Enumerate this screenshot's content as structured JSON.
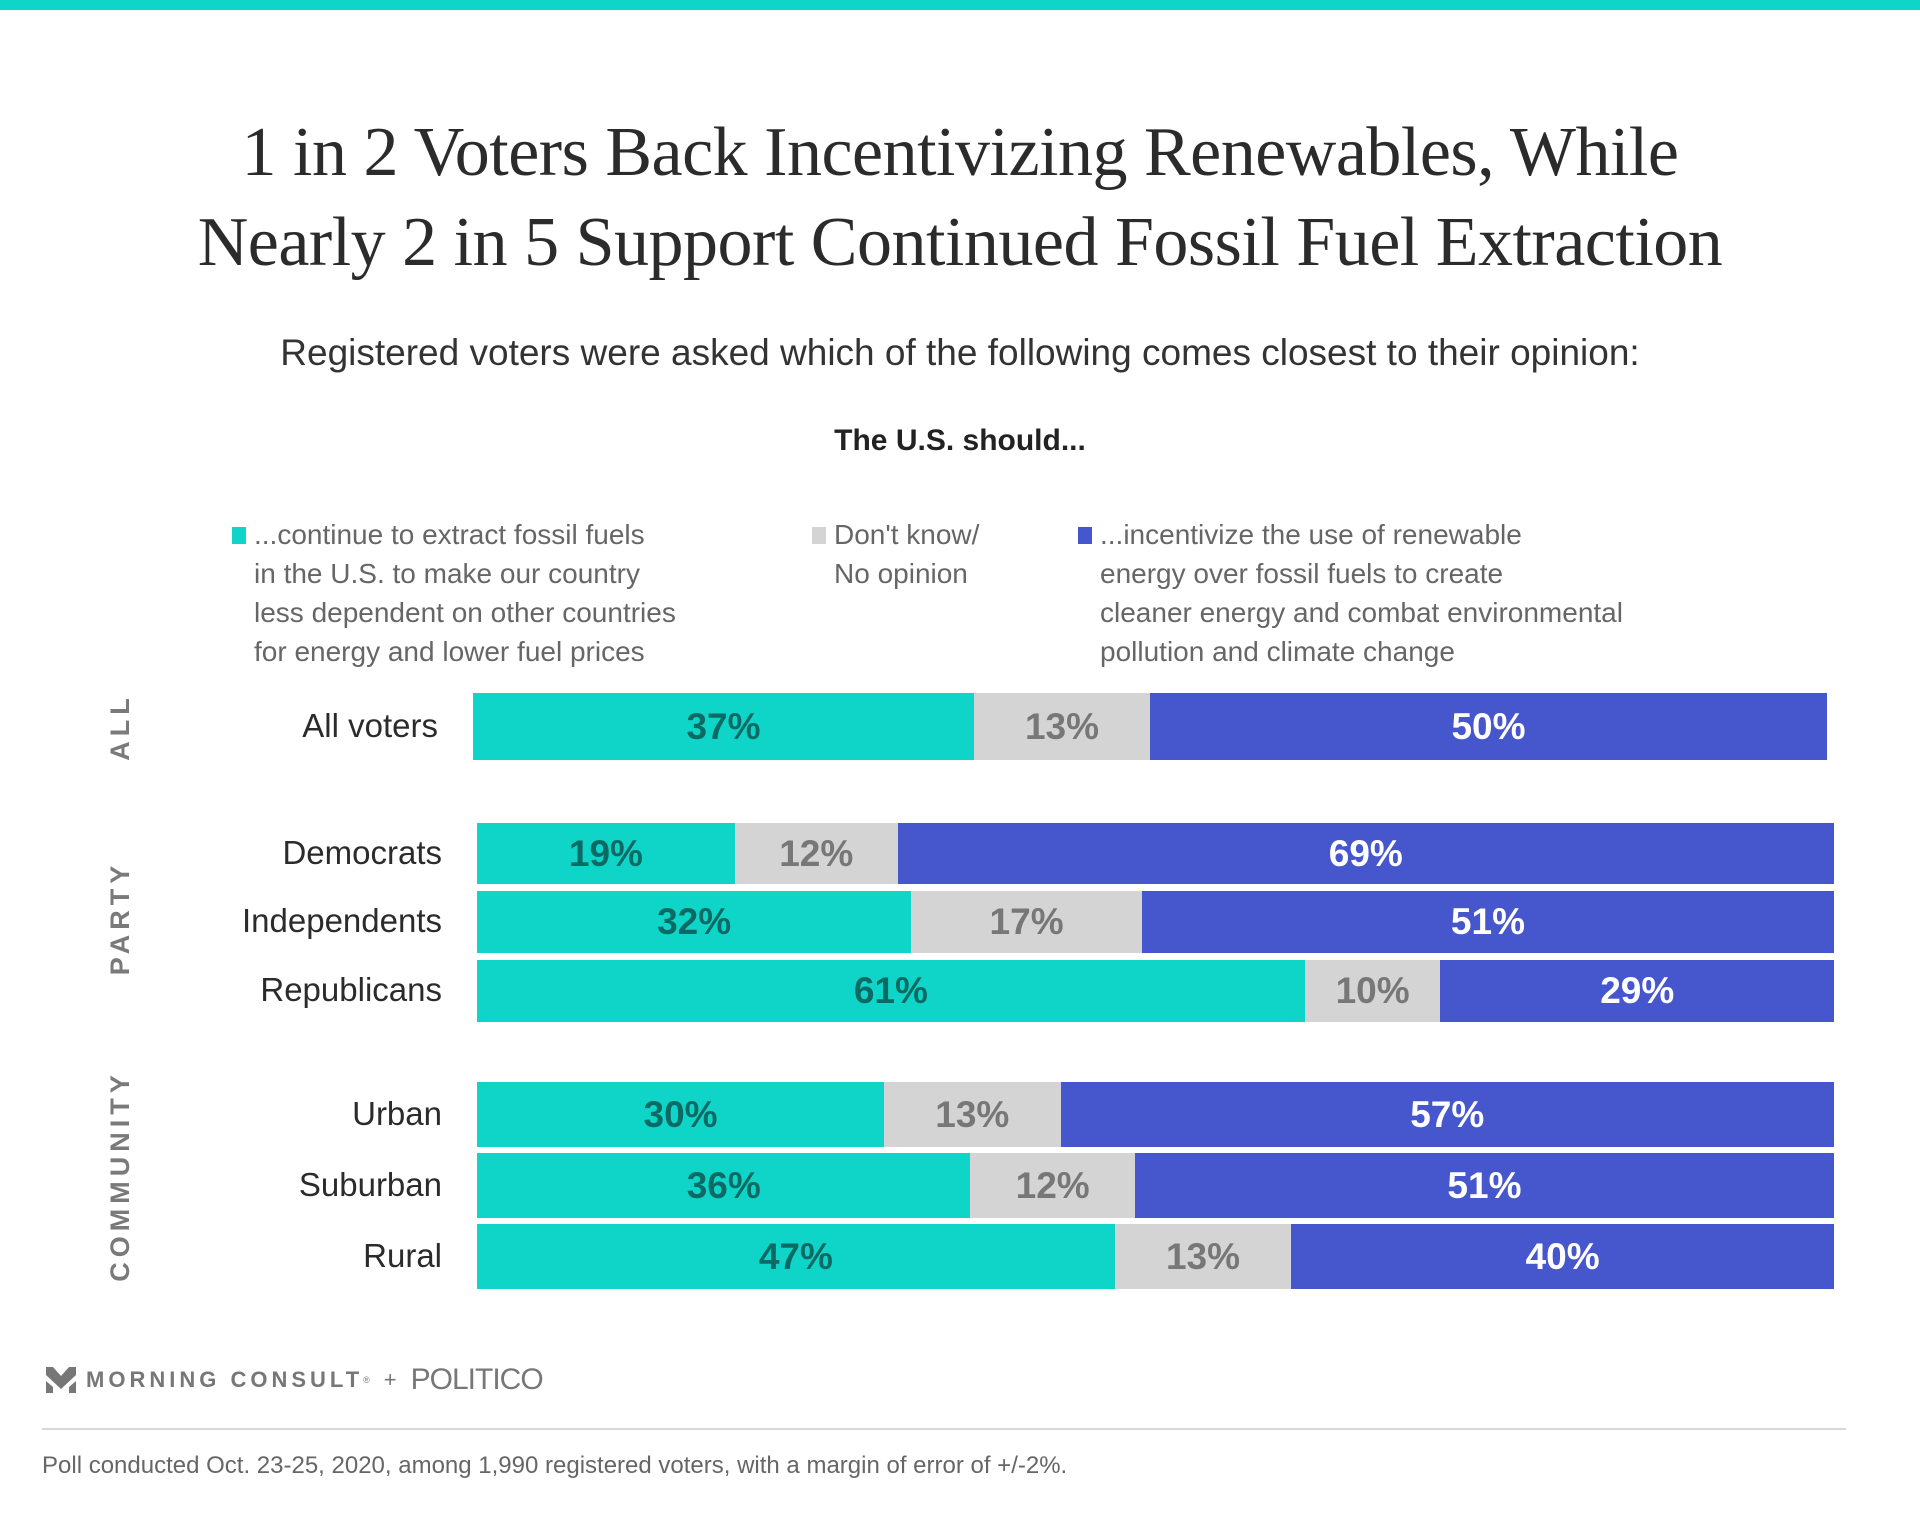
{
  "header": {
    "title_line1": "1 in 2 Voters Back Incentivizing Renewables, While",
    "title_line2": "Nearly 2 in 5 Support Continued Fossil Fuel Extraction",
    "subtitle": "Registered voters were asked which of the following comes closest to their opinion:",
    "question": "The U.S. should..."
  },
  "colors": {
    "fossil": "#0fd5c9",
    "dont_know": "#d4d4d4",
    "renewable": "#4657ce",
    "fossil_label": "#0b6b64",
    "dont_know_label": "#777777",
    "renewable_label": "#ffffff",
    "top_band": "#0fd5c9"
  },
  "chart_data": {
    "type": "bar",
    "orientation": "horizontal",
    "stacked": true,
    "title": "1 in 2 Voters Back Incentivizing Renewables, While Nearly 2 in 5 Support Continued Fossil Fuel Extraction",
    "subtitle": "Registered voters were asked which of the following comes closest to their opinion:",
    "xlabel": "",
    "ylabel": "",
    "xlim": [
      0,
      100
    ],
    "legend_position": "top",
    "legend": [
      {
        "key": "fossil",
        "label": "...continue to extract fossil fuels\nin the U.S. to make our country\nless dependent on other countries\nfor energy and lower fuel prices"
      },
      {
        "key": "dont_know",
        "label": "Don't know/\nNo opinion"
      },
      {
        "key": "renewable",
        "label": "...incentivize the use of renewable\nenergy over fossil fuels to create\ncleaner energy and combat environmental\npollution and climate change"
      }
    ],
    "groups": [
      {
        "name": "ALL",
        "categories": [
          "All voters"
        ]
      },
      {
        "name": "PARTY",
        "categories": [
          "Democrats",
          "Independents",
          "Republicans"
        ]
      },
      {
        "name": "COMMUNITY",
        "categories": [
          "Urban",
          "Suburban",
          "Rural"
        ]
      }
    ],
    "categories": [
      "All voters",
      "Democrats",
      "Independents",
      "Republicans",
      "Urban",
      "Suburban",
      "Rural"
    ],
    "series": [
      {
        "name": "Continue to extract fossil fuels",
        "key": "fossil",
        "values": [
          37,
          19,
          32,
          61,
          30,
          36,
          47
        ]
      },
      {
        "name": "Don't know/No opinion",
        "key": "dont_know",
        "values": [
          13,
          12,
          17,
          10,
          13,
          12,
          13
        ]
      },
      {
        "name": "Incentivize renewable energy",
        "key": "renewable",
        "values": [
          50,
          69,
          51,
          29,
          57,
          51,
          40
        ]
      }
    ]
  },
  "footer": {
    "logo_morning_consult": "MORNING CONSULT",
    "logo_registered": "®",
    "logo_plus": "+",
    "logo_politico": "POLITICO",
    "note": "Poll conducted Oct. 23-25, 2020, among 1,990 registered voters, with a margin of error of +/-2%."
  }
}
